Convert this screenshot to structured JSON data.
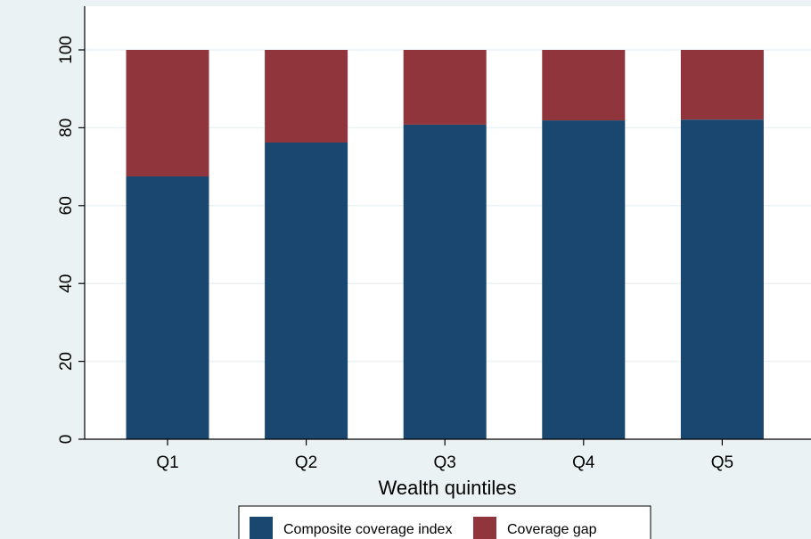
{
  "chart_data": {
    "type": "bar",
    "stacked": true,
    "orientation": "vertical",
    "title": "",
    "xlabel": "Wealth quintiles",
    "ylabel": "",
    "categories": [
      "Q1",
      "Q2",
      "Q3",
      "Q4",
      "Q5"
    ],
    "series": [
      {
        "name": "Composite coverage index",
        "values": [
          67.5,
          76.2,
          80.8,
          81.9,
          82.1
        ],
        "color": "#1a476f"
      },
      {
        "name": "Coverage gap",
        "values": [
          32.5,
          23.8,
          19.2,
          18.1,
          17.9
        ],
        "color": "#90353b"
      }
    ],
    "ylim": [
      0,
      100
    ],
    "yticks": [
      0,
      20,
      40,
      60,
      80,
      100
    ],
    "ytick_labels": [
      "0",
      "20",
      "40",
      "60",
      "80",
      "100"
    ],
    "grid": true,
    "legend_position": "bottom",
    "colors": {
      "background": "#eaf2f3",
      "plot_area": "#ffffff",
      "gridline": "#eaf2f3",
      "axis": "#000000"
    }
  }
}
